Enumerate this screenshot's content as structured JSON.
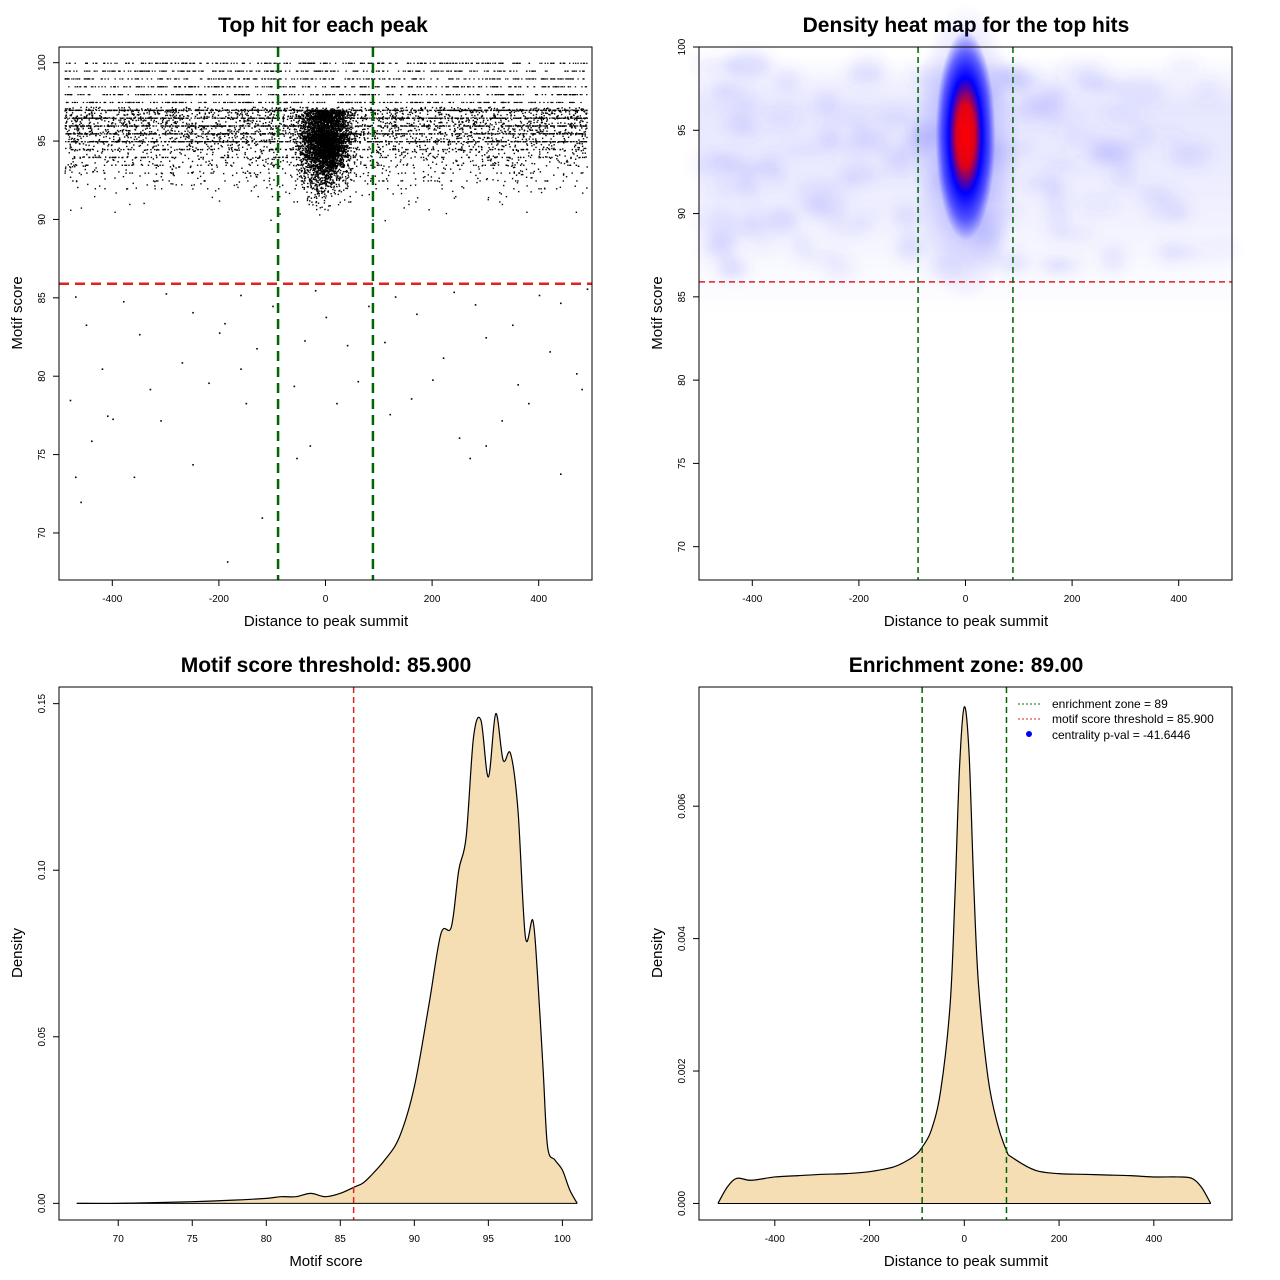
{
  "chart_data": [
    {
      "type": "scatter",
      "title": "Top hit for each peak",
      "xlabel": "Distance to peak summit",
      "ylabel": "Motif score",
      "xlim": [
        -500,
        500
      ],
      "ylim": [
        67,
        101
      ],
      "xticks": [
        -400,
        -200,
        0,
        200,
        400
      ],
      "yticks": [
        70,
        75,
        80,
        85,
        90,
        95,
        100
      ],
      "hlines": [
        {
          "y": 85.9,
          "color": "#dd2222",
          "style": "dashed"
        }
      ],
      "vlines": [
        {
          "x": -89,
          "color": "#006400",
          "style": "dashed"
        },
        {
          "x": 89,
          "color": "#006400",
          "style": "dashed"
        }
      ],
      "series": [
        {
          "points": [
            [
              -460,
              72
            ],
            [
              -185,
              68.2
            ],
            [
              -120,
              71
            ],
            [
              -470,
              73.6
            ],
            [
              -360,
              73.6
            ],
            [
              -250,
              74.4
            ],
            [
              -55,
              74.8
            ],
            [
              -30,
              75.6
            ],
            [
              -90,
              77.2
            ],
            [
              270,
              74.8
            ],
            [
              300,
              75.6
            ],
            [
              440,
              73.8
            ],
            [
              -440,
              75.9
            ],
            [
              -410,
              77.5
            ],
            [
              -310,
              77.2
            ],
            [
              120,
              77.6
            ],
            [
              250,
              76.1
            ],
            [
              330,
              77.2
            ],
            [
              -480,
              78.5
            ],
            [
              -400,
              77.3
            ],
            [
              -150,
              78.3
            ],
            [
              20,
              78.3
            ],
            [
              160,
              78.6
            ],
            [
              380,
              78.3
            ],
            [
              -330,
              79.2
            ],
            [
              -220,
              79.6
            ],
            [
              -160,
              80.5
            ],
            [
              -60,
              79.4
            ],
            [
              60,
              79.7
            ],
            [
              200,
              79.8
            ],
            [
              360,
              79.5
            ],
            [
              480,
              79.2
            ],
            [
              -420,
              80.5
            ],
            [
              -270,
              80.9
            ],
            [
              -200,
              82.8
            ],
            [
              -130,
              81.8
            ],
            [
              -40,
              82.3
            ],
            [
              40,
              82.0
            ],
            [
              110,
              82.2
            ],
            [
              220,
              81.2
            ],
            [
              300,
              82.5
            ],
            [
              420,
              81.6
            ],
            [
              470,
              80.2
            ],
            [
              -450,
              83.3
            ],
            [
              -350,
              82.7
            ],
            [
              -250,
              84.1
            ],
            [
              -190,
              83.4
            ],
            [
              -100,
              84.5
            ],
            [
              0,
              83.8
            ],
            [
              80,
              84.5
            ],
            [
              170,
              84.0
            ],
            [
              280,
              84.6
            ],
            [
              350,
              83.3
            ],
            [
              440,
              84.7
            ],
            [
              -470,
              85.1
            ],
            [
              -380,
              84.8
            ],
            [
              -300,
              85.3
            ],
            [
              -160,
              85.2
            ],
            [
              -20,
              85.5
            ],
            [
              130,
              85.1
            ],
            [
              240,
              85.4
            ],
            [
              400,
              85.2
            ],
            [
              490,
              85.6
            ]
          ]
        }
      ]
    },
    {
      "type": "heatmap",
      "title": "Density heat map for the top hits",
      "xlabel": "Distance to peak summit",
      "ylabel": "Motif score",
      "xlim": [
        -500,
        500
      ],
      "ylim": [
        68,
        100
      ],
      "xticks": [
        -400,
        -200,
        0,
        200,
        400
      ],
      "yticks": [
        70,
        75,
        80,
        85,
        90,
        95,
        100
      ],
      "hlines": [
        {
          "y": 85.9,
          "color": "#dd2222",
          "style": "dashed"
        }
      ],
      "vlines": [
        {
          "x": -89,
          "color": "#006400",
          "style": "dashed"
        },
        {
          "x": 89,
          "color": "#006400",
          "style": "dashed"
        }
      ],
      "density_peak": {
        "x": 0,
        "y": 96
      }
    },
    {
      "type": "area",
      "title": "Motif score threshold: 85.900",
      "xlabel": "Motif score",
      "ylabel": "Density",
      "xlim": [
        66,
        102
      ],
      "ylim": [
        -0.005,
        0.155
      ],
      "xticks": [
        70,
        75,
        80,
        85,
        90,
        95,
        100
      ],
      "yticks": [
        0.0,
        0.05,
        0.1,
        0.15
      ],
      "ytick_labels": [
        "0.00",
        "0.05",
        "0.10",
        "0.15"
      ],
      "vlines": [
        {
          "x": 85.9,
          "color": "#dd2222",
          "style": "dashed"
        }
      ],
      "fill": "#f5deb3",
      "series": [
        {
          "x": [
            67.2,
            70,
            75,
            78,
            80,
            81,
            82,
            83,
            84,
            85,
            86,
            86.5,
            87,
            88,
            89,
            90,
            91,
            91.8,
            92.5,
            93,
            93.5,
            94,
            94.5,
            95,
            95.5,
            96,
            96.5,
            97,
            97.5,
            98,
            98.3,
            98.7,
            99,
            99.5,
            100,
            100.5,
            101
          ],
          "y": [
            0,
            0,
            0.0005,
            0.001,
            0.0015,
            0.002,
            0.002,
            0.003,
            0.002,
            0.003,
            0.005,
            0.006,
            0.008,
            0.013,
            0.02,
            0.035,
            0.06,
            0.081,
            0.083,
            0.1,
            0.11,
            0.14,
            0.145,
            0.128,
            0.147,
            0.133,
            0.135,
            0.118,
            0.08,
            0.085,
            0.07,
            0.04,
            0.017,
            0.013,
            0.01,
            0.004,
            0
          ]
        }
      ]
    },
    {
      "type": "area",
      "title": "Enrichment zone: 89.00",
      "xlabel": "Distance to peak summit",
      "ylabel": "Density",
      "xlim": [
        -560,
        565
      ],
      "ylim": [
        -0.00025,
        0.0078
      ],
      "xticks": [
        -400,
        -200,
        0,
        200,
        400
      ],
      "yticks": [
        0.0,
        0.002,
        0.004,
        0.006
      ],
      "ytick_labels": [
        "0.000",
        "0.002",
        "0.004",
        "0.006"
      ],
      "vlines": [
        {
          "x": -89,
          "color": "#006400",
          "style": "dashed"
        },
        {
          "x": 89,
          "color": "#006400",
          "style": "dashed"
        }
      ],
      "fill": "#f5deb3",
      "legend": {
        "position": "top-right",
        "entries": [
          {
            "label": "enrichment zone = 89",
            "color": "#006400",
            "marker": "dotted-line"
          },
          {
            "label": "motif score threshold = 85.900",
            "color": "#dd2222",
            "marker": "dotted-line"
          },
          {
            "label": "centrality p-val = -41.6446",
            "color": "#0000ff",
            "marker": "dot"
          }
        ]
      },
      "series": [
        {
          "x": [
            -520,
            -500,
            -480,
            -450,
            -400,
            -350,
            -300,
            -250,
            -200,
            -150,
            -120,
            -100,
            -89,
            -70,
            -50,
            -30,
            -20,
            -10,
            0,
            10,
            20,
            30,
            50,
            70,
            89,
            100,
            150,
            200,
            250,
            300,
            350,
            400,
            450,
            480,
            500,
            520
          ],
          "y": [
            0,
            0.00025,
            0.00038,
            0.00035,
            0.0004,
            0.00042,
            0.00044,
            0.00045,
            0.00048,
            0.00055,
            0.00065,
            0.00075,
            0.00085,
            0.0011,
            0.0017,
            0.003,
            0.0046,
            0.0066,
            0.0075,
            0.0068,
            0.0048,
            0.0033,
            0.0019,
            0.0012,
            0.0008,
            0.0007,
            0.0005,
            0.00045,
            0.00044,
            0.00043,
            0.00042,
            0.0004,
            0.0004,
            0.00038,
            0.00025,
            0
          ]
        }
      ]
    }
  ]
}
